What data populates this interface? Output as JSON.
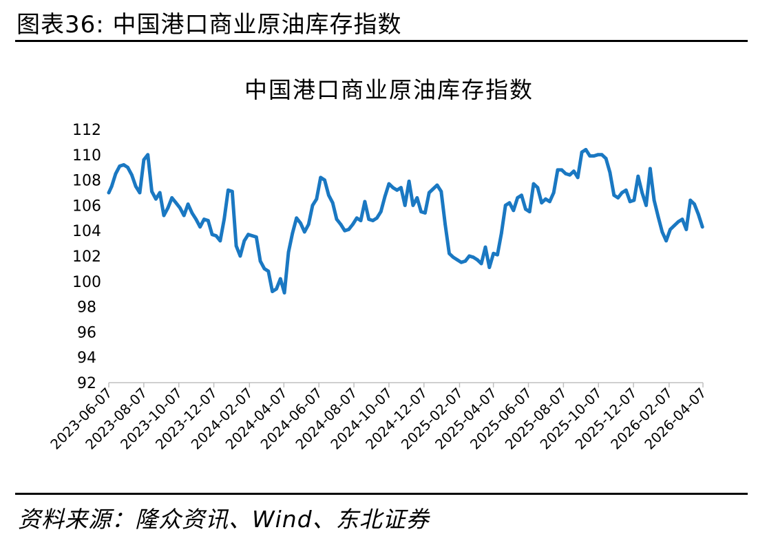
{
  "figure_label": "图表36: 中国港口商业原油库存指数",
  "source_note": "资料来源：隆众资讯、Wind、东北证券",
  "colors": {
    "line": "#1a78c2",
    "axis": "#bfbfbf",
    "text": "#000000"
  },
  "chart_data": {
    "type": "line",
    "title": "中国港口商业原油库存指数",
    "xlabel": "",
    "ylabel": "",
    "ylim": [
      92,
      112
    ],
    "yticks": [
      92,
      94,
      96,
      98,
      100,
      102,
      104,
      106,
      108,
      110,
      112
    ],
    "xlim": [
      "2023-06-07",
      "2026-04-07"
    ],
    "xticks": [
      "2023-06-07",
      "2023-08-07",
      "2023-10-07",
      "2023-12-07",
      "2024-02-07",
      "2024-04-07",
      "2024-06-07",
      "2024-08-07",
      "2024-10-07",
      "2024-12-07",
      "2025-02-07",
      "2025-04-07",
      "2025-06-07",
      "2025-08-07",
      "2025-10-07",
      "2025-12-07",
      "2026-02-07",
      "2026-04-07"
    ],
    "grid": false,
    "series": [
      {
        "x": [
          "2023-06-07",
          "2023-06-12",
          "2023-06-19",
          "2023-06-26",
          "2023-07-03",
          "2023-07-10",
          "2023-07-17",
          "2023-07-24",
          "2023-07-31",
          "2023-08-07",
          "2023-08-14",
          "2023-08-21",
          "2023-08-28",
          "2023-09-04",
          "2023-09-11",
          "2023-09-18",
          "2023-09-25",
          "2023-10-02",
          "2023-10-09",
          "2023-10-16",
          "2023-10-23",
          "2023-10-30",
          "2023-11-06",
          "2023-11-13",
          "2023-11-20",
          "2023-11-27",
          "2023-12-04",
          "2023-12-11",
          "2023-12-18",
          "2023-12-25",
          "2024-01-01",
          "2024-01-08",
          "2024-01-15",
          "2024-01-22",
          "2024-01-29",
          "2024-02-05",
          "2024-02-12",
          "2024-02-19",
          "2024-02-26",
          "2024-03-04",
          "2024-03-11",
          "2024-03-18",
          "2024-03-25",
          "2024-04-01",
          "2024-04-08",
          "2024-04-15",
          "2024-04-22",
          "2024-04-29",
          "2024-05-06",
          "2024-05-13",
          "2024-05-20",
          "2024-05-27",
          "2024-06-03",
          "2024-06-10",
          "2024-06-17",
          "2024-06-24",
          "2024-07-01",
          "2024-07-08",
          "2024-07-15",
          "2024-07-22",
          "2024-07-29",
          "2024-08-05",
          "2024-08-12",
          "2024-08-19",
          "2024-08-26",
          "2024-09-02",
          "2024-09-09",
          "2024-09-16",
          "2024-09-23",
          "2024-09-30",
          "2024-10-07",
          "2024-10-14",
          "2024-10-21",
          "2024-10-28",
          "2024-11-04",
          "2024-11-11",
          "2024-11-18",
          "2024-11-25",
          "2024-12-02",
          "2024-12-09",
          "2024-12-16",
          "2024-12-23",
          "2024-12-30",
          "2025-01-06",
          "2025-01-13",
          "2025-01-20",
          "2025-01-27",
          "2025-02-03",
          "2025-02-10",
          "2025-02-17",
          "2025-02-24",
          "2025-03-03",
          "2025-03-10",
          "2025-03-17",
          "2025-03-24",
          "2025-03-31",
          "2025-04-07",
          "2025-04-14",
          "2025-04-21",
          "2025-04-28",
          "2025-05-05",
          "2025-05-12",
          "2025-05-19",
          "2025-05-26",
          "2025-06-02",
          "2025-06-09",
          "2025-06-16",
          "2025-06-23",
          "2025-06-30",
          "2025-07-07",
          "2025-07-14",
          "2025-07-21",
          "2025-07-28",
          "2025-08-04",
          "2025-08-11",
          "2025-08-18",
          "2025-08-25",
          "2025-09-01",
          "2025-09-08",
          "2025-09-15",
          "2025-09-22",
          "2025-09-29",
          "2025-10-06",
          "2025-10-13",
          "2025-10-20",
          "2025-10-27",
          "2025-11-03",
          "2025-11-10",
          "2025-11-17",
          "2025-11-24",
          "2025-12-01",
          "2025-12-08",
          "2025-12-15",
          "2025-12-22",
          "2025-12-29",
          "2026-01-05",
          "2026-01-12",
          "2026-01-19",
          "2026-01-26",
          "2026-02-02",
          "2026-02-09",
          "2026-02-16",
          "2026-02-23",
          "2026-03-02",
          "2026-03-09",
          "2026-03-16",
          "2026-03-23",
          "2026-03-30",
          "2026-04-06"
        ],
        "values": [
          107.0,
          107.5,
          108.5,
          109.1,
          109.2,
          109.0,
          108.4,
          107.5,
          107.0,
          109.6,
          110.0,
          107.1,
          106.5,
          107.0,
          105.2,
          105.8,
          106.6,
          106.2,
          105.8,
          105.2,
          106.1,
          105.4,
          104.9,
          104.3,
          104.9,
          104.8,
          103.7,
          103.6,
          103.2,
          104.9,
          107.2,
          107.1,
          102.8,
          102.0,
          103.2,
          103.7,
          103.6,
          103.5,
          101.6,
          101.0,
          100.8,
          99.2,
          99.4,
          100.2,
          99.1,
          102.3,
          103.8,
          105.0,
          104.6,
          103.9,
          104.5,
          106.0,
          106.5,
          108.2,
          108.0,
          106.8,
          106.2,
          104.9,
          104.5,
          104.0,
          104.1,
          104.5,
          105.0,
          104.8,
          106.3,
          104.9,
          104.8,
          105.0,
          105.5,
          106.7,
          107.7,
          107.4,
          107.2,
          107.4,
          106.0,
          107.9,
          106.0,
          106.6,
          105.5,
          105.4,
          107.0,
          107.3,
          107.6,
          107.1,
          104.5,
          102.2,
          101.9,
          101.7,
          101.5,
          101.6,
          102.0,
          101.9,
          101.7,
          101.4,
          102.7,
          101.1,
          102.2,
          102.1,
          103.8,
          106.0,
          106.2,
          105.6,
          106.6,
          106.8,
          105.7,
          105.5,
          107.7,
          107.4,
          106.2,
          106.5,
          106.3,
          107.0,
          108.8,
          108.8,
          108.5,
          108.4,
          108.7,
          108.2,
          110.2,
          110.4,
          109.9,
          109.9,
          110.0,
          110.0,
          109.7,
          108.6,
          106.8,
          106.6,
          107.0,
          107.2,
          106.3,
          106.4,
          108.3,
          107.0,
          106.0,
          108.9,
          106.4,
          105.1,
          103.9,
          103.2,
          104.1,
          104.4,
          104.7,
          104.9,
          104.1,
          106.4,
          106.1,
          105.3,
          104.3
        ]
      }
    ]
  }
}
